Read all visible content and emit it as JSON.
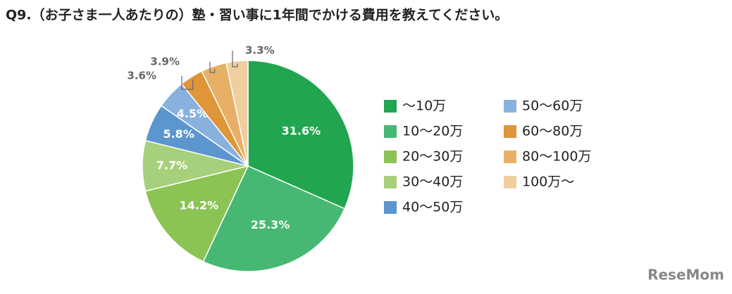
{
  "chart_data": {
    "type": "pie",
    "title": "Q9.（お子さま一人あたりの）塾・習い事に1年間でかける費用を教えてください。",
    "categories": [
      "～10万",
      "10～20万",
      "20～30万",
      "30～40万",
      "40～50万",
      "50～60万",
      "60～80万",
      "80～100万",
      "100万～"
    ],
    "values": [
      31.6,
      25.3,
      14.2,
      7.7,
      5.8,
      4.5,
      3.6,
      3.9,
      3.3
    ],
    "value_labels": [
      "31.6%",
      "25.3%",
      "14.2%",
      "7.7%",
      "5.8%",
      "4.5%",
      "3.6%",
      "3.9%",
      "3.3%"
    ],
    "colors": [
      "#21a64f",
      "#47b873",
      "#8bc355",
      "#a7d07c",
      "#5b96cf",
      "#88b2dd",
      "#e09538",
      "#e7b066",
      "#efcf9f"
    ],
    "watermark": "ReseMom"
  }
}
